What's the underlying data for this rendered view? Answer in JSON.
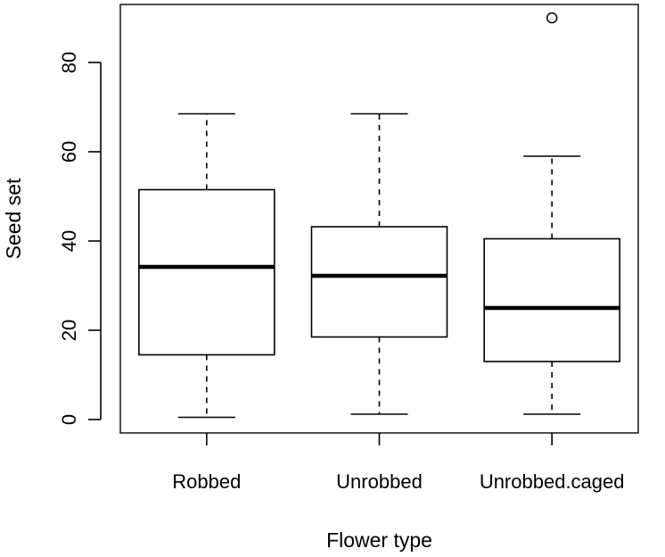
{
  "chart_data": {
    "type": "boxplot",
    "title": "",
    "xlabel": "Flower type",
    "ylabel": "Seed set",
    "categories": [
      "Robbed",
      "Unrobbed",
      "Unrobbed.caged"
    ],
    "boxes": [
      {
        "category": "Robbed",
        "whisker_low": 0.5,
        "q1": 14.5,
        "median": 34.2,
        "q3": 51.5,
        "whisker_high": 68.5,
        "outliers": []
      },
      {
        "category": "Unrobbed",
        "whisker_low": 1.2,
        "q1": 18.5,
        "median": 32.2,
        "q3": 43.2,
        "whisker_high": 68.5,
        "outliers": []
      },
      {
        "category": "Unrobbed.caged",
        "whisker_low": 1.2,
        "q1": 13.0,
        "median": 25.0,
        "q3": 40.5,
        "whisker_high": 59.0,
        "outliers": [
          90
        ]
      }
    ],
    "ylim": [
      -3,
      93
    ],
    "yticks": [
      0,
      20,
      40,
      60,
      80
    ],
    "grid": false,
    "legend": "none"
  },
  "colors": {
    "stroke": "#000000",
    "background": "#ffffff"
  }
}
